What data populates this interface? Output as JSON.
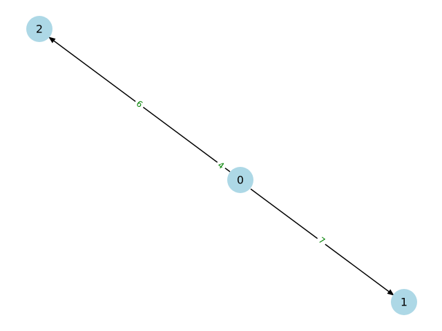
{
  "graph": {
    "directed": true,
    "colors": {
      "node_fill": "#add8e6",
      "edge": "#000000",
      "edge_label": "#008000",
      "background": "#ffffff"
    },
    "nodes": [
      {
        "id": "0",
        "label": "0"
      },
      {
        "id": "1",
        "label": "1"
      },
      {
        "id": "2",
        "label": "2"
      }
    ],
    "edges": [
      {
        "from": "0",
        "to": "2",
        "label": "6",
        "second_label": "4"
      },
      {
        "from": "0",
        "to": "1",
        "label": "7"
      }
    ]
  }
}
